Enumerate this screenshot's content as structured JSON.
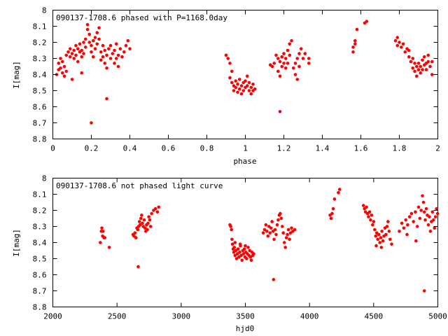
{
  "charts": [
    {
      "id": "phased",
      "type": "scatter",
      "title": "090137-1708.6 phased with P=1168.0day",
      "xlabel": "phase",
      "ylabel": "I[mag]",
      "xlim": [
        0,
        2
      ],
      "ylim": [
        8,
        8.8
      ],
      "y_inverted": true,
      "xticks": [
        0,
        0.2,
        0.4,
        0.6,
        0.8,
        1,
        1.2,
        1.4,
        1.6,
        1.8,
        2
      ],
      "xtick_labels": [
        "0",
        "0.2",
        "0.4",
        "0.6",
        "0.8",
        "1",
        "1.2",
        "1.4",
        "1.6",
        "1.8",
        "2"
      ],
      "yticks": [
        8,
        8.1,
        8.2,
        8.3,
        8.4,
        8.5,
        8.6,
        8.7,
        8.8
      ],
      "ytick_labels": [
        "8",
        "8.1",
        "8.2",
        "8.3",
        "8.4",
        "8.5",
        "8.6",
        "8.7",
        "8.8"
      ],
      "marker_color": "#ff0000",
      "points": [
        [
          0.02,
          8.4
        ],
        [
          0.03,
          8.33
        ],
        [
          0.03,
          8.37
        ],
        [
          0.04,
          8.3
        ],
        [
          0.04,
          8.36
        ],
        [
          0.05,
          8.39
        ],
        [
          0.05,
          8.32
        ],
        [
          0.06,
          8.35
        ],
        [
          0.07,
          8.38
        ],
        [
          0.07,
          8.28
        ],
        [
          0.08,
          8.26
        ],
        [
          0.09,
          8.24
        ],
        [
          0.09,
          8.29
        ],
        [
          0.1,
          8.27
        ],
        [
          0.11,
          8.25
        ],
        [
          0.11,
          8.3
        ],
        [
          0.12,
          8.22
        ],
        [
          0.12,
          8.28
        ],
        [
          0.13,
          8.32
        ],
        [
          0.13,
          8.24
        ],
        [
          0.14,
          8.26
        ],
        [
          0.14,
          8.21
        ],
        [
          0.15,
          8.29
        ],
        [
          0.15,
          8.25
        ],
        [
          0.16,
          8.2
        ],
        [
          0.16,
          8.27
        ],
        [
          0.17,
          8.18
        ],
        [
          0.17,
          8.23
        ],
        [
          0.18,
          8.09
        ],
        [
          0.18,
          8.12
        ],
        [
          0.19,
          8.2
        ],
        [
          0.19,
          8.15
        ],
        [
          0.2,
          8.22
        ],
        [
          0.2,
          8.26
        ],
        [
          0.21,
          8.19
        ],
        [
          0.21,
          8.29
        ],
        [
          0.22,
          8.17
        ],
        [
          0.22,
          8.24
        ],
        [
          0.23,
          8.14
        ],
        [
          0.23,
          8.21
        ],
        [
          0.24,
          8.11
        ],
        [
          0.24,
          8.18
        ],
        [
          0.25,
          8.26
        ],
        [
          0.25,
          8.31
        ],
        [
          0.26,
          8.22
        ],
        [
          0.26,
          8.29
        ],
        [
          0.27,
          8.33
        ],
        [
          0.27,
          8.25
        ],
        [
          0.28,
          8.36
        ],
        [
          0.28,
          8.28
        ],
        [
          0.29,
          8.24
        ],
        [
          0.3,
          8.3
        ],
        [
          0.3,
          8.22
        ],
        [
          0.31,
          8.27
        ],
        [
          0.32,
          8.33
        ],
        [
          0.32,
          8.25
        ],
        [
          0.33,
          8.3
        ],
        [
          0.34,
          8.28
        ],
        [
          0.34,
          8.35
        ],
        [
          0.35,
          8.24
        ],
        [
          0.36,
          8.29
        ],
        [
          0.37,
          8.26
        ],
        [
          0.38,
          8.22
        ],
        [
          0.39,
          8.19
        ],
        [
          0.4,
          8.24
        ],
        [
          0.1,
          8.43
        ],
        [
          0.15,
          8.39
        ],
        [
          0.2,
          8.7
        ],
        [
          0.28,
          8.55
        ],
        [
          0.33,
          8.21
        ],
        [
          0.06,
          8.41
        ],
        [
          0.9,
          8.28
        ],
        [
          0.91,
          8.3
        ],
        [
          0.92,
          8.33
        ],
        [
          0.92,
          8.42
        ],
        [
          0.93,
          8.45
        ],
        [
          0.93,
          8.38
        ],
        [
          0.94,
          8.47
        ],
        [
          0.94,
          8.5
        ],
        [
          0.95,
          8.44
        ],
        [
          0.95,
          8.48
        ],
        [
          0.96,
          8.46
        ],
        [
          0.96,
          8.51
        ],
        [
          0.97,
          8.43
        ],
        [
          0.97,
          8.49
        ],
        [
          0.98,
          8.47
        ],
        [
          0.98,
          8.52
        ],
        [
          0.99,
          8.45
        ],
        [
          0.99,
          8.5
        ],
        [
          1.0,
          8.48
        ],
        [
          1.0,
          8.44
        ],
        [
          1.01,
          8.41
        ],
        [
          1.01,
          8.47
        ],
        [
          1.02,
          8.5
        ],
        [
          1.02,
          8.45
        ],
        [
          1.03,
          8.48
        ],
        [
          1.03,
          8.52
        ],
        [
          1.04,
          8.46
        ],
        [
          1.04,
          8.5
        ],
        [
          1.05,
          8.49
        ],
        [
          1.13,
          8.34
        ],
        [
          1.14,
          8.35
        ],
        [
          1.15,
          8.33
        ],
        [
          1.16,
          8.28
        ],
        [
          1.17,
          8.3
        ],
        [
          1.17,
          8.38
        ],
        [
          1.18,
          8.32
        ],
        [
          1.18,
          8.41
        ],
        [
          1.19,
          8.29
        ],
        [
          1.19,
          8.35
        ],
        [
          1.2,
          8.33
        ],
        [
          1.2,
          8.27
        ],
        [
          1.21,
          8.36
        ],
        [
          1.21,
          8.3
        ],
        [
          1.22,
          8.25
        ],
        [
          1.22,
          8.33
        ],
        [
          1.23,
          8.21
        ],
        [
          1.23,
          8.28
        ],
        [
          1.24,
          8.19
        ],
        [
          1.25,
          8.36
        ],
        [
          1.26,
          8.4
        ],
        [
          1.26,
          8.33
        ],
        [
          1.27,
          8.43
        ],
        [
          1.27,
          8.3
        ],
        [
          1.28,
          8.27
        ],
        [
          1.28,
          8.35
        ],
        [
          1.29,
          8.24
        ],
        [
          1.3,
          8.3
        ],
        [
          1.31,
          8.27
        ],
        [
          1.33,
          8.33
        ],
        [
          1.33,
          8.3
        ],
        [
          1.18,
          8.63
        ],
        [
          1.56,
          8.23
        ],
        [
          1.56,
          8.26
        ],
        [
          1.57,
          8.21
        ],
        [
          1.57,
          8.19
        ],
        [
          1.58,
          8.12
        ],
        [
          1.62,
          8.08
        ],
        [
          1.63,
          8.07
        ],
        [
          1.78,
          8.19
        ],
        [
          1.79,
          8.22
        ],
        [
          1.79,
          8.17
        ],
        [
          1.8,
          8.2
        ],
        [
          1.81,
          8.23
        ],
        [
          1.82,
          8.21
        ],
        [
          1.83,
          8.26
        ],
        [
          1.84,
          8.24
        ],
        [
          1.85,
          8.29
        ],
        [
          1.85,
          8.25
        ],
        [
          1.86,
          8.32
        ],
        [
          1.87,
          8.3
        ],
        [
          1.87,
          8.36
        ],
        [
          1.88,
          8.33
        ],
        [
          1.88,
          8.38
        ],
        [
          1.89,
          8.35
        ],
        [
          1.89,
          8.41
        ],
        [
          1.9,
          8.37
        ],
        [
          1.9,
          8.33
        ],
        [
          1.91,
          8.39
        ],
        [
          1.91,
          8.35
        ],
        [
          1.92,
          8.31
        ],
        [
          1.92,
          8.37
        ],
        [
          1.93,
          8.34
        ],
        [
          1.93,
          8.29
        ],
        [
          1.94,
          8.33
        ],
        [
          1.94,
          8.37
        ],
        [
          1.95,
          8.32
        ],
        [
          1.95,
          8.28
        ],
        [
          1.96,
          8.35
        ],
        [
          1.97,
          8.4
        ],
        [
          1.97,
          8.32
        ]
      ]
    },
    {
      "id": "raw",
      "type": "scatter",
      "title": "090137-1708.6 not phased light curve",
      "xlabel": "hjd0",
      "ylabel": "I[mag]",
      "xlim": [
        2000,
        5000
      ],
      "ylim": [
        8,
        8.8
      ],
      "y_inverted": true,
      "xticks": [
        2000,
        2500,
        3000,
        3500,
        4000,
        4500,
        5000
      ],
      "xtick_labels": [
        "2000",
        "2500",
        "3000",
        "3500",
        "4000",
        "4500",
        "5000"
      ],
      "yticks": [
        8,
        8.1,
        8.2,
        8.3,
        8.4,
        8.5,
        8.6,
        8.7,
        8.8
      ],
      "ytick_labels": [
        "8",
        "8.1",
        "8.2",
        "8.3",
        "8.4",
        "8.5",
        "8.6",
        "8.7",
        "8.8"
      ],
      "marker_color": "#ff0000",
      "points": [
        [
          2370,
          8.4
        ],
        [
          2378,
          8.33
        ],
        [
          2382,
          8.31
        ],
        [
          2388,
          8.36
        ],
        [
          2392,
          8.33
        ],
        [
          2398,
          8.37
        ],
        [
          2405,
          8.37
        ],
        [
          2440,
          8.43
        ],
        [
          2625,
          8.35
        ],
        [
          2632,
          8.36
        ],
        [
          2640,
          8.34
        ],
        [
          2648,
          8.37
        ],
        [
          2655,
          8.31
        ],
        [
          2662,
          8.32
        ],
        [
          2668,
          8.3
        ],
        [
          2675,
          8.27
        ],
        [
          2680,
          8.29
        ],
        [
          2686,
          8.25
        ],
        [
          2692,
          8.23
        ],
        [
          2698,
          8.28
        ],
        [
          2705,
          8.3
        ],
        [
          2712,
          8.26
        ],
        [
          2718,
          8.31
        ],
        [
          2724,
          8.33
        ],
        [
          2730,
          8.29
        ],
        [
          2736,
          8.32
        ],
        [
          2742,
          8.28
        ],
        [
          2748,
          8.24
        ],
        [
          2755,
          8.26
        ],
        [
          2762,
          8.3
        ],
        [
          2770,
          8.22
        ],
        [
          2785,
          8.2
        ],
        [
          2800,
          8.19
        ],
        [
          2815,
          8.21
        ],
        [
          2825,
          8.18
        ],
        [
          2665,
          8.55
        ],
        [
          3380,
          8.29
        ],
        [
          3386,
          8.3
        ],
        [
          3392,
          8.32
        ],
        [
          3396,
          8.38
        ],
        [
          3400,
          8.41
        ],
        [
          3405,
          8.44
        ],
        [
          3410,
          8.46
        ],
        [
          3414,
          8.43
        ],
        [
          3420,
          8.48
        ],
        [
          3426,
          8.45
        ],
        [
          3432,
          8.5
        ],
        [
          3438,
          8.47
        ],
        [
          3444,
          8.44
        ],
        [
          3450,
          8.49
        ],
        [
          3456,
          8.46
        ],
        [
          3462,
          8.42
        ],
        [
          3468,
          8.48
        ],
        [
          3474,
          8.51
        ],
        [
          3480,
          8.45
        ],
        [
          3486,
          8.47
        ],
        [
          3492,
          8.44
        ],
        [
          3498,
          8.49
        ],
        [
          3504,
          8.46
        ],
        [
          3510,
          8.5
        ],
        [
          3516,
          8.47
        ],
        [
          3522,
          8.43
        ],
        [
          3528,
          8.48
        ],
        [
          3534,
          8.45
        ],
        [
          3540,
          8.49
        ],
        [
          3546,
          8.51
        ],
        [
          3552,
          8.46
        ],
        [
          3558,
          8.48
        ],
        [
          3565,
          8.47
        ],
        [
          3420,
          8.4
        ],
        [
          3460,
          8.41
        ],
        [
          3500,
          8.42
        ],
        [
          3640,
          8.34
        ],
        [
          3650,
          8.32
        ],
        [
          3660,
          8.29
        ],
        [
          3668,
          8.33
        ],
        [
          3676,
          8.36
        ],
        [
          3684,
          8.3
        ],
        [
          3692,
          8.34
        ],
        [
          3700,
          8.31
        ],
        [
          3708,
          8.27
        ],
        [
          3716,
          8.33
        ],
        [
          3724,
          8.38
        ],
        [
          3732,
          8.32
        ],
        [
          3740,
          8.35
        ],
        [
          3748,
          8.29
        ],
        [
          3756,
          8.26
        ],
        [
          3764,
          8.23
        ],
        [
          3772,
          8.22
        ],
        [
          3780,
          8.25
        ],
        [
          3788,
          8.3
        ],
        [
          3796,
          8.34
        ],
        [
          3804,
          8.4
        ],
        [
          3812,
          8.43
        ],
        [
          3820,
          8.37
        ],
        [
          3828,
          8.35
        ],
        [
          3836,
          8.32
        ],
        [
          3844,
          8.38
        ],
        [
          3852,
          8.34
        ],
        [
          3860,
          8.31
        ],
        [
          3870,
          8.33
        ],
        [
          3885,
          8.32
        ],
        [
          3720,
          8.63
        ],
        [
          4160,
          8.23
        ],
        [
          4168,
          8.25
        ],
        [
          4176,
          8.22
        ],
        [
          4185,
          8.19
        ],
        [
          4195,
          8.13
        ],
        [
          4225,
          8.09
        ],
        [
          4235,
          8.07
        ],
        [
          4420,
          8.17
        ],
        [
          4428,
          8.19
        ],
        [
          4436,
          8.21
        ],
        [
          4444,
          8.18
        ],
        [
          4452,
          8.22
        ],
        [
          4460,
          8.24
        ],
        [
          4468,
          8.21
        ],
        [
          4476,
          8.26
        ],
        [
          4484,
          8.23
        ],
        [
          4492,
          8.29
        ],
        [
          4500,
          8.27
        ],
        [
          4508,
          8.32
        ],
        [
          4516,
          8.36
        ],
        [
          4524,
          8.34
        ],
        [
          4532,
          8.38
        ],
        [
          4540,
          8.35
        ],
        [
          4548,
          8.4
        ],
        [
          4556,
          8.37
        ],
        [
          4564,
          8.33
        ],
        [
          4572,
          8.39
        ],
        [
          4580,
          8.36
        ],
        [
          4588,
          8.31
        ],
        [
          4596,
          8.35
        ],
        [
          4604,
          8.3
        ],
        [
          4612,
          8.27
        ],
        [
          4620,
          8.33
        ],
        [
          4628,
          8.38
        ],
        [
          4640,
          8.41
        ],
        [
          4520,
          8.42
        ],
        [
          4560,
          8.43
        ],
        [
          4700,
          8.33
        ],
        [
          4720,
          8.28
        ],
        [
          4735,
          8.31
        ],
        [
          4750,
          8.26
        ],
        [
          4765,
          8.29
        ],
        [
          4780,
          8.24
        ],
        [
          4795,
          8.22
        ],
        [
          4810,
          8.27
        ],
        [
          4825,
          8.21
        ],
        [
          4840,
          8.3
        ],
        [
          4850,
          8.18
        ],
        [
          4860,
          8.25
        ],
        [
          4870,
          8.2
        ],
        [
          4880,
          8.11
        ],
        [
          4888,
          8.15
        ],
        [
          4895,
          8.21
        ],
        [
          4902,
          8.26
        ],
        [
          4910,
          8.19
        ],
        [
          4918,
          8.23
        ],
        [
          4926,
          8.29
        ],
        [
          4934,
          8.24
        ],
        [
          4942,
          8.33
        ],
        [
          4950,
          8.27
        ],
        [
          4958,
          8.21
        ],
        [
          4966,
          8.26
        ],
        [
          4974,
          8.31
        ],
        [
          4982,
          8.24
        ],
        [
          4990,
          8.19
        ],
        [
          4998,
          8.22
        ],
        [
          4895,
          8.7
        ],
        [
          4760,
          8.35
        ],
        [
          4830,
          8.39
        ]
      ]
    }
  ]
}
